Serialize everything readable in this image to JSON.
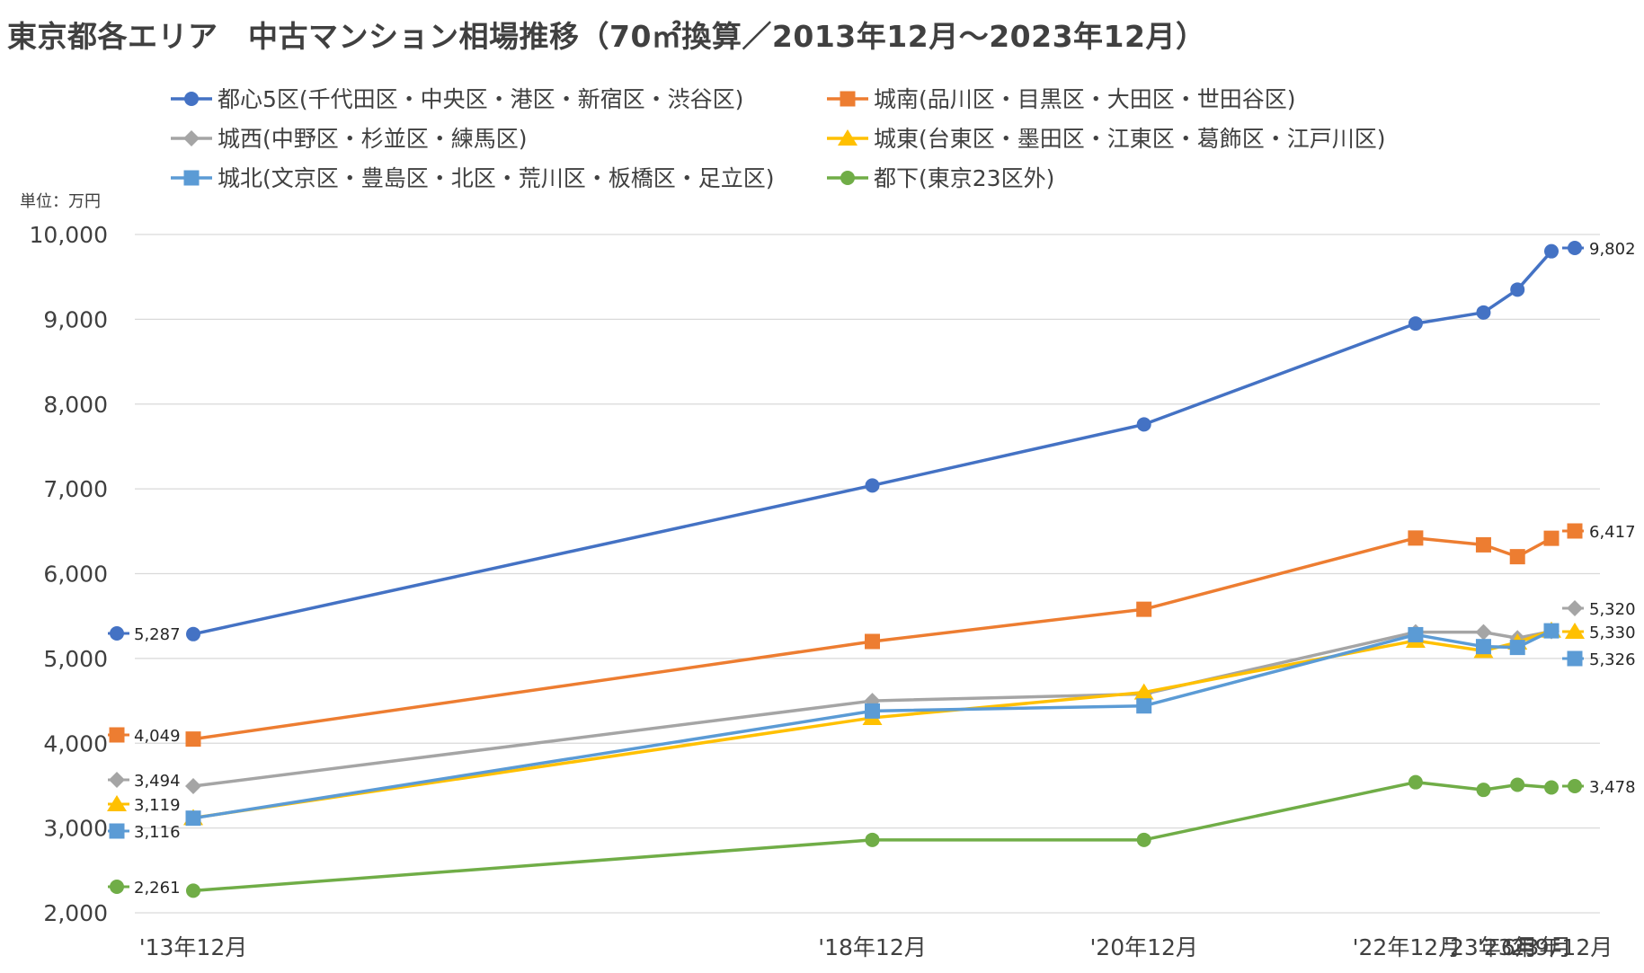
{
  "chart_data": {
    "type": "line",
    "title": "東京都各エリア　中古マンション相場推移（70㎡換算／2013年12月〜2023年12月）",
    "unit_label": "単位：万円",
    "categories": [
      "'13年12月",
      "'18年12月",
      "'20年12月",
      "'22年12月",
      "'23年6月",
      "'23年9月",
      "'23年12月"
    ],
    "x_positions": [
      0,
      5,
      7,
      9,
      9.5,
      9.75,
      10
    ],
    "ylim": [
      2000,
      10000
    ],
    "yticks": [
      2000,
      3000,
      4000,
      5000,
      6000,
      7000,
      8000,
      9000,
      10000
    ],
    "ytick_labels": [
      "2,000",
      "3,000",
      "4,000",
      "5,000",
      "6,000",
      "7,000",
      "8,000",
      "9,000",
      "10,000"
    ],
    "grid": true,
    "legend_position": "top",
    "series": [
      {
        "name": "都心5区(千代田区・中央区・港区・新宿区・渋谷区)",
        "color": "#4472C4",
        "marker": "circle",
        "values": [
          5287,
          7040,
          7760,
          8950,
          9080,
          9350,
          9802
        ],
        "start_label": "5,287",
        "end_label": "9,802"
      },
      {
        "name": "城南(品川区・目黒区・大田区・世田谷区)",
        "color": "#ED7D31",
        "marker": "square",
        "values": [
          4049,
          5200,
          5580,
          6420,
          6340,
          6200,
          6417
        ],
        "start_label": "4,049",
        "end_label": "6,417"
      },
      {
        "name": "城西(中野区・杉並区・練馬区)",
        "color": "#A5A5A5",
        "marker": "diamond",
        "values": [
          3494,
          4500,
          4580,
          5310,
          5310,
          5240,
          5320
        ],
        "start_label": "3,494",
        "end_label": "5,320"
      },
      {
        "name": "城東(台東区・墨田区・江東区・葛飾区・江戸川区)",
        "color": "#FFC000",
        "marker": "triangle",
        "values": [
          3119,
          4300,
          4600,
          5210,
          5090,
          5190,
          5330
        ],
        "start_label": "3,119",
        "end_label": "5,330"
      },
      {
        "name": "城北(文京区・豊島区・北区・荒川区・板橋区・足立区)",
        "color": "#5B9BD5",
        "marker": "square",
        "values": [
          3116,
          4380,
          4440,
          5280,
          5140,
          5130,
          5326
        ],
        "start_label": "3,116",
        "end_label": "5,326"
      },
      {
        "name": "都下(東京23区外)",
        "color": "#70AD47",
        "marker": "circle",
        "values": [
          2261,
          2860,
          2860,
          3540,
          3450,
          3510,
          3478
        ],
        "start_label": "2,261",
        "end_label": "3,478"
      }
    ]
  }
}
